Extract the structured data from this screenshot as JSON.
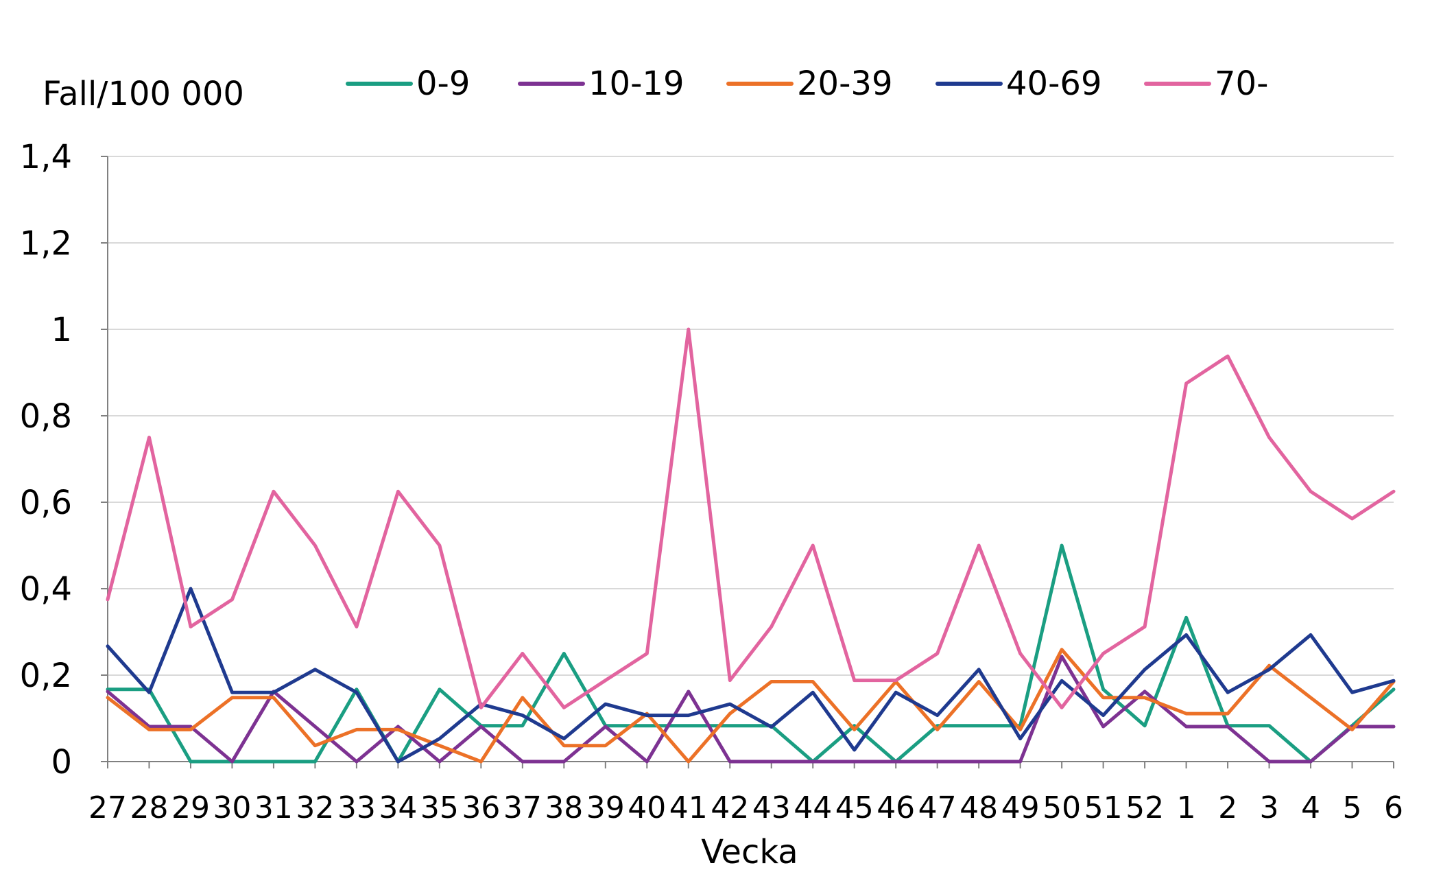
{
  "chart_data": {
    "type": "line",
    "title": "",
    "ylabel": "Fall/100 000",
    "xlabel": "Vecka",
    "ylim": [
      0,
      1.4
    ],
    "yticks": [
      0,
      0.2,
      0.4,
      0.6,
      0.8,
      1,
      1.2,
      1.4
    ],
    "ytick_labels": [
      "0",
      "0,2",
      "0,4",
      "0,6",
      "0,8",
      "1",
      "1,2",
      "1,4"
    ],
    "grid": true,
    "legend_position": "top",
    "categories": [
      "27",
      "28",
      "29",
      "30",
      "31",
      "32",
      "33",
      "34",
      "35",
      "36",
      "37",
      "38",
      "39",
      "40",
      "41",
      "42",
      "43",
      "44",
      "45",
      "46",
      "47",
      "48",
      "49",
      "50",
      "51",
      "52",
      "1",
      "2",
      "3",
      "4",
      "5",
      "6"
    ],
    "series": [
      {
        "name": "0-9",
        "color": "#1a9e82",
        "values": [
          0.167,
          0.167,
          0,
          0,
          0,
          0,
          0.167,
          0,
          0.167,
          0.083,
          0.083,
          0.25,
          0.083,
          0.083,
          0.083,
          0.083,
          0.083,
          0,
          0.083,
          0,
          0.083,
          0.083,
          0.083,
          0.5,
          0.167,
          0.083,
          0.333,
          0.083,
          0.083,
          0,
          0.083,
          0.167
        ]
      },
      {
        "name": "10-19",
        "color": "#7d3292",
        "values": [
          0.162,
          0.081,
          0.081,
          0,
          0.162,
          0.081,
          0,
          0.081,
          0,
          0.081,
          0,
          0,
          0.081,
          0,
          0.162,
          0,
          0,
          0,
          0,
          0,
          0,
          0,
          0,
          0.243,
          0.081,
          0.162,
          0.081,
          0.081,
          0,
          0,
          0.081,
          0.081
        ]
      },
      {
        "name": "20-39",
        "color": "#ec7127",
        "values": [
          0.148,
          0.074,
          0.074,
          0.148,
          0.148,
          0.037,
          0.074,
          0.074,
          0.037,
          0,
          0.148,
          0.037,
          0.037,
          0.111,
          0,
          0.111,
          0.185,
          0.185,
          0.074,
          0.185,
          0.074,
          0.185,
          0.074,
          0.259,
          0.148,
          0.148,
          0.111,
          0.111,
          0.222,
          0.148,
          0.074,
          0.185
        ]
      },
      {
        "name": "40-69",
        "color": "#1f3a8f",
        "values": [
          0.267,
          0.16,
          0.4,
          0.16,
          0.16,
          0.213,
          0.16,
          0,
          0.053,
          0.133,
          0.107,
          0.053,
          0.133,
          0.107,
          0.107,
          0.133,
          0.08,
          0.16,
          0.027,
          0.16,
          0.107,
          0.213,
          0.053,
          0.187,
          0.107,
          0.213,
          0.293,
          0.16,
          0.213,
          0.293,
          0.16,
          0.187
        ]
      },
      {
        "name": "70-",
        "color": "#e2649f",
        "values": [
          0.375,
          0.75,
          0.312,
          0.375,
          0.625,
          0.5,
          0.312,
          0.625,
          0.5,
          0.125,
          0.25,
          0.125,
          0.188,
          0.25,
          1.0,
          0.188,
          0.312,
          0.5,
          0.188,
          0.188,
          0.25,
          0.5,
          0.25,
          0.125,
          0.25,
          0.312,
          0.875,
          0.938,
          0.75,
          0.625,
          0.562,
          0.625
        ]
      }
    ]
  }
}
